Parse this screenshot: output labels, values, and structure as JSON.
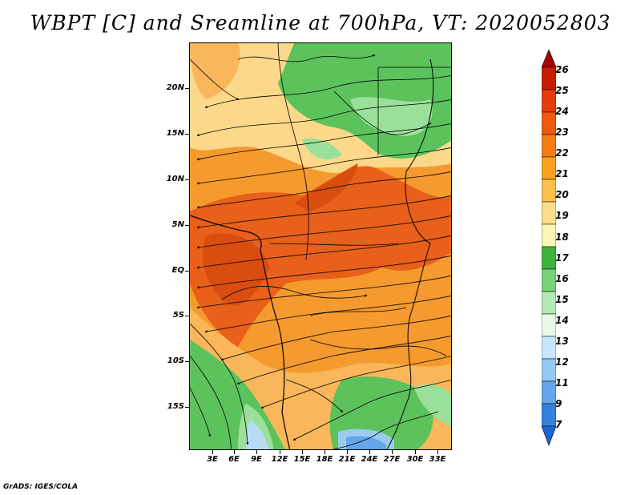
{
  "title": "WBPT [C] and Sreamline at 700hPa, VT: 2020052803",
  "footer": "GrADS: IGES/COLA",
  "lat_labels": [
    "20N",
    "15N",
    "10N",
    "5N",
    "EQ",
    "5S",
    "10S",
    "15S"
  ],
  "lon_labels": [
    "3E",
    "6E",
    "9E",
    "12E",
    "15E",
    "18E",
    "21E",
    "24E",
    "27E",
    "30E",
    "33E"
  ],
  "colorbar": {
    "labels": [
      "26",
      "25",
      "24",
      "23",
      "22",
      "21",
      "20",
      "19",
      "18",
      "17",
      "16",
      "15",
      "14",
      "13",
      "12",
      "11",
      "9",
      "7"
    ],
    "colors": [
      "#a50000",
      "#c81e00",
      "#e63c0a",
      "#f05a0f",
      "#f57d14",
      "#f9a01e",
      "#fcc04b",
      "#fddc8a",
      "#fff5b4",
      "#3cb43c",
      "#78d278",
      "#b4eab4",
      "#e6fae6",
      "#c8e6fa",
      "#96c8f5",
      "#64a5eb",
      "#3282e1",
      "#1e64d2"
    ],
    "top_arrow_color": "#a50000",
    "bottom_arrow_color": "#1e64d2"
  },
  "map": {
    "field_colors": {
      "hot": "#e8601a",
      "warm": "#f59a2e",
      "mild": "#f9b65a",
      "pale": "#fcd88a",
      "green": "#5cc25c",
      "lightgreen": "#9ae09a",
      "blue": "#9ccbf0"
    }
  }
}
